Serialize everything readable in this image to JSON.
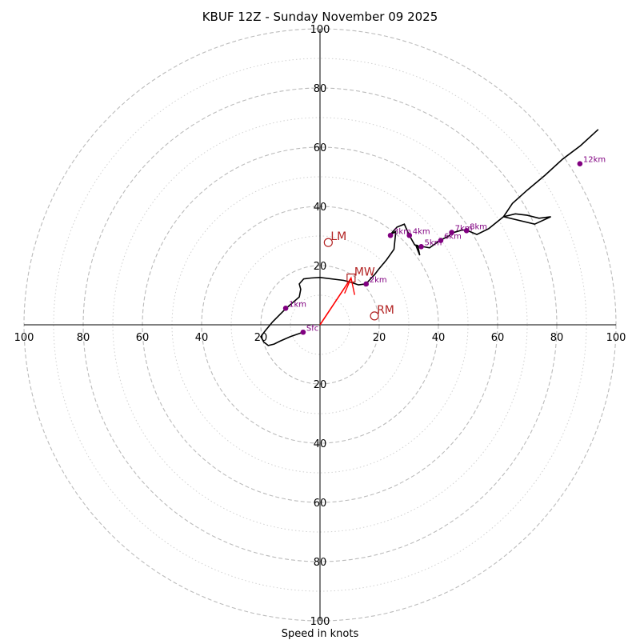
{
  "chart_data": {
    "type": "hodograph",
    "title": "KBUF 12Z - Sunday November 09 2025",
    "xlabel": "Speed in knots",
    "ring_max": 100,
    "major_rings": [
      20,
      40,
      60,
      80,
      100
    ],
    "minor_rings": [
      10,
      30,
      50,
      70,
      90
    ],
    "tick_labels": {
      "top": [
        "20",
        "40",
        "60",
        "80",
        "100"
      ],
      "bottom": [
        "20",
        "40",
        "60",
        "80",
        "100"
      ],
      "left": [
        "20",
        "40",
        "60",
        "80",
        "100"
      ],
      "right": [
        "20",
        "40",
        "60",
        "80",
        "100"
      ]
    },
    "hodograph_trace": {
      "u": [
        -5.7,
        -10,
        -13.5,
        -15.5,
        -17.5,
        -19,
        -20,
        -18.5,
        -16,
        -11.5,
        -7,
        -6.5,
        -7,
        -5.5,
        -3,
        0,
        8,
        10,
        13,
        15.5,
        18.5,
        20,
        22.5,
        25,
        25.5,
        25.5,
        23.5,
        26,
        28.5,
        30.2,
        32,
        33,
        33.7,
        32.5,
        34.2,
        37,
        40.5,
        43.5,
        44.5,
        48,
        49.5,
        53,
        57,
        62,
        66,
        70,
        74,
        78,
        72.5,
        62,
        65,
        70,
        76,
        82,
        88,
        94
      ],
      "v": [
        -2.5,
        -4,
        -5.5,
        -6.5,
        -7,
        -5.8,
        -4,
        -2,
        1,
        5.5,
        9.4,
        12,
        13.8,
        15.5,
        15.8,
        16,
        15,
        14.5,
        13.5,
        13.8,
        17,
        19,
        22,
        25.5,
        30.5,
        31.5,
        30.2,
        33,
        34,
        30.2,
        27,
        26.8,
        23.5,
        26.5,
        26.5,
        26,
        28.5,
        30,
        31,
        32,
        32,
        30.5,
        32.5,
        36.5,
        37.5,
        37,
        36,
        36.5,
        34,
        36.5,
        41,
        45.5,
        50.5,
        56,
        60.5,
        66
      ]
    },
    "height_markers": [
      {
        "label": "Sfc",
        "u": -5.7,
        "v": -2.5
      },
      {
        "label": "1km",
        "u": -11.6,
        "v": 5.6
      },
      {
        "label": "2km",
        "u": 15.6,
        "v": 13.8
      },
      {
        "label": "3km",
        "u": 23.8,
        "v": 30.2
      },
      {
        "label": "4km",
        "u": 30.2,
        "v": 30.2
      },
      {
        "label": "5km",
        "u": 34.2,
        "v": 26.4
      },
      {
        "label": "6km",
        "u": 40.8,
        "v": 28.5
      },
      {
        "label": "7km",
        "u": 44.5,
        "v": 31.2
      },
      {
        "label": "8km",
        "u": 49.5,
        "v": 31.8
      },
      {
        "label": "12km",
        "u": 87.8,
        "v": 54.4
      }
    ],
    "storm_motion": {
      "mean_wind": {
        "label": "MW",
        "u": 10.5,
        "v": 15.8
      },
      "left_mover": {
        "label": "LM",
        "u": 2.8,
        "v": 27.8
      },
      "right_mover": {
        "label": "RM",
        "u": 18.4,
        "v": 3.0
      }
    },
    "colors": {
      "trace": "#000000",
      "marker": "#800080",
      "storm_motion": "#b22222",
      "shear_vector": "#ff0000",
      "ring_major": "#bbbbbb",
      "ring_minor": "#d0d0d0",
      "axis": "#000000"
    }
  }
}
